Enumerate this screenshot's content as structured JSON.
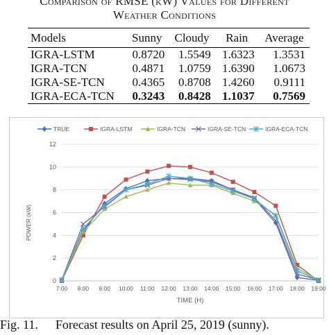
{
  "table": {
    "caption_line1": "Comparison of RMSE (kW) Values for Different",
    "caption_line2": "Weather Conditions",
    "headers": [
      "Models",
      "Sunny",
      "Cloudy",
      "Rain",
      "Average"
    ],
    "rows": [
      {
        "model": "IGRA-LSTM",
        "values": [
          "0.8720",
          "1.5549",
          "1.6323",
          "1.3531"
        ],
        "bold": false
      },
      {
        "model": "IGRA-TCN",
        "values": [
          "0.4871",
          "1.0759",
          "1.6390",
          "1.0673"
        ],
        "bold": false
      },
      {
        "model": "IGRA-SE-TCN",
        "values": [
          "0.4365",
          "0.8708",
          "1.4260",
          "0.9111"
        ],
        "bold": false
      },
      {
        "model": "IGRA-ECA-TCN",
        "values": [
          "0.3243",
          "0.8428",
          "1.1037",
          "0.7569"
        ],
        "bold": true
      }
    ]
  },
  "chart_data": {
    "type": "line",
    "xlabel": "TIME (H)",
    "ylabel": "POWER (kW)",
    "ylim": [
      0,
      12
    ],
    "yticks": [
      0,
      2,
      4,
      6,
      8,
      10,
      12
    ],
    "grid": "horizontal",
    "legend": "top",
    "categories": [
      "7:00",
      "8:00",
      "9:00",
      "10:00",
      "11:00",
      "12:00",
      "13:00",
      "14:00",
      "15:00",
      "16:00",
      "17:00",
      "18:00",
      "19:00"
    ],
    "series": [
      {
        "name": "TRUE",
        "color": "#4472C4",
        "marker": "diamond",
        "values": [
          0.1,
          4.4,
          6.8,
          8.1,
          8.8,
          9.0,
          9.0,
          8.8,
          8.0,
          7.2,
          5.1,
          0.3,
          0.05
        ]
      },
      {
        "name": "IGRA-LSTM",
        "color": "#C0504D",
        "marker": "square",
        "values": [
          0.0,
          4.0,
          7.4,
          8.9,
          9.6,
          10.1,
          10.0,
          9.5,
          8.7,
          7.8,
          6.6,
          1.4,
          0.0
        ]
      },
      {
        "name": "IGRA-TCN",
        "color": "#9BBB59",
        "marker": "triangle",
        "values": [
          0.05,
          4.3,
          6.3,
          7.4,
          8.0,
          8.6,
          8.4,
          8.4,
          7.7,
          7.0,
          5.8,
          1.1,
          0.1
        ]
      },
      {
        "name": "IGRA-SE-TCN",
        "color": "#8064A2",
        "marker": "x",
        "values": [
          0.1,
          5.0,
          6.5,
          8.0,
          8.4,
          9.0,
          8.9,
          8.7,
          8.0,
          7.3,
          5.3,
          0.6,
          0.1
        ]
      },
      {
        "name": "IGRA-ECA-TCN",
        "color": "#4BACC6",
        "marker": "asterisk",
        "values": [
          0.1,
          4.6,
          6.6,
          8.0,
          8.5,
          9.2,
          9.0,
          8.5,
          7.9,
          7.2,
          5.7,
          0.9,
          0.05
        ]
      }
    ]
  },
  "figure": {
    "label": "Fig. 11.",
    "caption": "Forecast results on April 25, 2019 (sunny)."
  }
}
